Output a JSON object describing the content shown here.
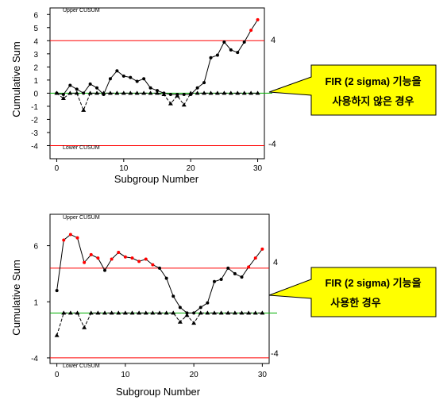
{
  "chart_data": [
    {
      "type": "line",
      "chart_kind": "CUSUM control chart",
      "xlabel": "Subgroup Number",
      "ylabel": "Cumulative Sum",
      "xlim": [
        -1,
        31
      ],
      "ylim": [
        -5,
        6.5
      ],
      "xticks": [
        0,
        10,
        20,
        30
      ],
      "yticks": [
        6,
        5,
        4,
        3,
        2,
        1,
        0,
        -1,
        -2,
        -3,
        -4
      ],
      "upper_label": "Upper CUSUM",
      "lower_label": "Lower CUSUM",
      "limits": {
        "upper": 4,
        "lower": -4,
        "center": 0,
        "upper_text": "4",
        "lower_text": "-4"
      },
      "colors": {
        "limit": "#ff0000",
        "center": "#00b000",
        "out_of_control": "#ff0000",
        "line": "#000000"
      },
      "x": [
        0,
        1,
        2,
        3,
        4,
        5,
        6,
        7,
        8,
        9,
        10,
        11,
        12,
        13,
        14,
        15,
        16,
        17,
        18,
        19,
        20,
        21,
        22,
        23,
        24,
        25,
        26,
        27,
        28,
        29,
        30
      ],
      "series": [
        {
          "values": [
            0,
            -0.1,
            0.6,
            0.3,
            0,
            0.7,
            0.4,
            -0.1,
            1.1,
            1.7,
            1.3,
            1.2,
            0.9,
            1.1,
            0.4,
            0.2,
            0,
            -0.1,
            -0.1,
            -0.1,
            -0.1,
            0.4,
            0.8,
            2.7,
            2.9,
            3.9,
            3.3,
            3.1,
            3.9,
            4.8,
            5.6
          ]
        },
        {
          "values": [
            0,
            -0.4,
            0,
            0,
            -1.3,
            0,
            0,
            0,
            0,
            0,
            0,
            0,
            0,
            0,
            0,
            0,
            -0.1,
            -0.8,
            -0.2,
            -0.9,
            0,
            0,
            0,
            0,
            0,
            0,
            0,
            0,
            0,
            0,
            0
          ]
        }
      ],
      "callout": {
        "line1": "FIR (2 sigma) 기능을",
        "line2": "사용하지 않은 경우"
      }
    },
    {
      "type": "line",
      "chart_kind": "CUSUM control chart",
      "xlabel": "Subgroup Number",
      "ylabel": "Cumulative Sum",
      "xlim": [
        -1,
        31
      ],
      "ylim": [
        -4.5,
        8.8
      ],
      "xticks": [
        0,
        10,
        20,
        30
      ],
      "yticks": [
        6,
        1,
        -4
      ],
      "upper_label": "Upper CUSUM",
      "lower_label": "Lower CUSUM",
      "limits": {
        "upper": 4,
        "lower": -4,
        "center": 0,
        "upper_text": "4",
        "lower_text": "-4"
      },
      "colors": {
        "limit": "#ff0000",
        "center": "#00b000",
        "out_of_control": "#ff0000",
        "line": "#000000"
      },
      "x": [
        0,
        1,
        2,
        3,
        4,
        5,
        6,
        7,
        8,
        9,
        10,
        11,
        12,
        13,
        14,
        15,
        16,
        17,
        18,
        19,
        20,
        21,
        22,
        23,
        24,
        25,
        26,
        27,
        28,
        29,
        30
      ],
      "series": [
        {
          "values": [
            2,
            6.5,
            7,
            6.7,
            4.5,
            5.2,
            4.9,
            3.8,
            4.8,
            5.4,
            5,
            4.9,
            4.6,
            4.8,
            4.3,
            4,
            3.1,
            1.5,
            0.5,
            0,
            0,
            0.5,
            0.9,
            2.8,
            3,
            4,
            3.5,
            3.2,
            4.1,
            4.9,
            5.7
          ]
        },
        {
          "values": [
            -2,
            0,
            0,
            0,
            -1.3,
            0,
            0,
            0,
            0,
            0,
            0,
            0,
            0,
            0,
            0,
            0,
            0,
            0,
            -0.8,
            -0.2,
            -0.9,
            0,
            0,
            0,
            0,
            0,
            0,
            0,
            0,
            0,
            0
          ]
        }
      ],
      "callout": {
        "line1": "FIR (2 sigma) 기능을",
        "line2": "사용한 경우"
      }
    }
  ]
}
